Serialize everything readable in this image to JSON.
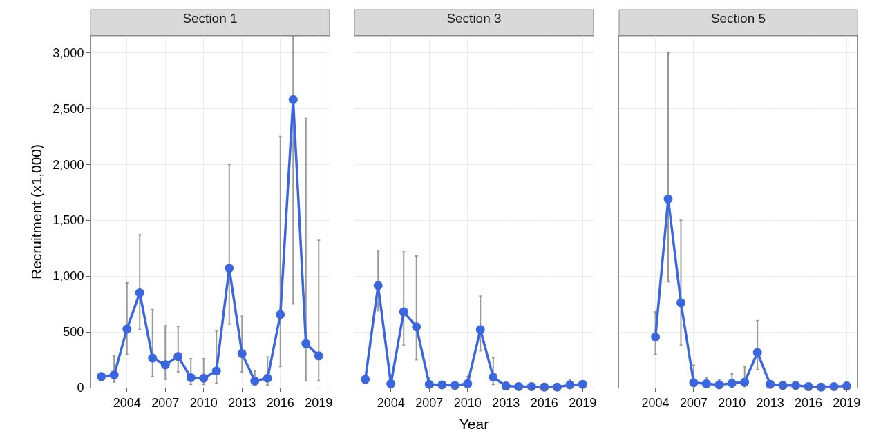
{
  "chart_data": [
    {
      "type": "line",
      "title": "Section 1",
      "ylabel": "Recruitment (x1,000)",
      "x": [
        2002,
        2003,
        2004,
        2005,
        2006,
        2007,
        2008,
        2009,
        2010,
        2011,
        2012,
        2013,
        2014,
        2015,
        2016,
        2017,
        2018,
        2019
      ],
      "values": [
        100,
        115,
        525,
        850,
        265,
        205,
        280,
        90,
        85,
        150,
        1070,
        305,
        60,
        85,
        655,
        2580,
        395,
        285
      ],
      "errors": [
        null,
        [
          50,
          285
        ],
        [
          300,
          940
        ],
        [
          520,
          1370
        ],
        [
          100,
          700
        ],
        [
          75,
          555
        ],
        [
          140,
          550
        ],
        [
          30,
          260
        ],
        [
          30,
          260
        ],
        [
          40,
          510
        ],
        [
          570,
          2000
        ],
        [
          140,
          640
        ],
        [
          20,
          150
        ],
        [
          25,
          275
        ],
        [
          190,
          2250
        ],
        [
          750,
          3150
        ],
        [
          60,
          2410
        ],
        [
          60,
          1320
        ]
      ],
      "color": "#3a66e0",
      "marker": "circle",
      "grid": true,
      "xlim": [
        2001.15,
        2019.85
      ],
      "xticks": [
        2004,
        2007,
        2010,
        2013,
        2016,
        2019
      ],
      "ylim": [
        0,
        3150
      ],
      "yticks": [
        0,
        500,
        {
          "value": 1000,
          "label": "1,000"
        },
        {
          "value": 1500,
          "label": "1,500"
        },
        {
          "value": 2000,
          "label": "2,000"
        },
        {
          "value": 2500,
          "label": "2,500"
        },
        {
          "value": 3000,
          "label": "3,000"
        }
      ]
    },
    {
      "type": "line",
      "title": "Section 3",
      "xlabel": "Year",
      "x": [
        2002,
        2003,
        2004,
        2005,
        2006,
        2007,
        2008,
        2009,
        2010,
        2011,
        2012,
        2013,
        2014,
        2015,
        2016,
        2017,
        2018,
        2019
      ],
      "values": [
        75,
        915,
        35,
        680,
        545,
        30,
        25,
        20,
        35,
        520,
        95,
        15,
        10,
        10,
        5,
        5,
        25,
        30
      ],
      "errors": [
        null,
        [
          690,
          1225
        ],
        null,
        [
          380,
          1215
        ],
        [
          250,
          1180
        ],
        [
          10,
          90
        ],
        null,
        null,
        [
          10,
          100
        ],
        [
          330,
          820
        ],
        [
          30,
          270
        ],
        null,
        null,
        null,
        null,
        null,
        [
          10,
          70
        ],
        null
      ],
      "color": "#3a66e0",
      "marker": "circle",
      "grid": true,
      "tick_labels": "x",
      "xlim": [
        2001.15,
        2019.85
      ],
      "xticks": [
        2004,
        2007,
        2010,
        2013,
        2016,
        2019
      ],
      "ylim": [
        0,
        3150
      ],
      "yticks": [
        0,
        500,
        1000,
        1500,
        2000,
        2500,
        3000
      ]
    },
    {
      "type": "line",
      "title": "Section 5",
      "x": [
        2004,
        2005,
        2006,
        2007,
        2008,
        2009,
        2010,
        2011,
        2012,
        2013,
        2014,
        2015,
        2016,
        2017,
        2018,
        2019
      ],
      "values": [
        455,
        1690,
        760,
        45,
        35,
        25,
        40,
        50,
        315,
        30,
        20,
        20,
        10,
        5,
        10,
        15
      ],
      "errors": [
        [
          300,
          680
        ],
        [
          950,
          3000
        ],
        [
          380,
          1500
        ],
        [
          10,
          200
        ],
        [
          10,
          90
        ],
        [
          10,
          70
        ],
        [
          10,
          125
        ],
        [
          10,
          190
        ],
        [
          160,
          600
        ],
        null,
        null,
        null,
        null,
        null,
        null,
        null
      ],
      "color": "#3a66e0",
      "marker": "circle",
      "grid": true,
      "tick_labels": "x",
      "xlim": [
        2001.15,
        2019.85
      ],
      "xticks": [
        2004,
        2007,
        2010,
        2013,
        2016,
        2019
      ],
      "ylim": [
        0,
        3150
      ],
      "yticks": [
        0,
        500,
        1000,
        1500,
        2000,
        2500,
        3000
      ]
    }
  ]
}
